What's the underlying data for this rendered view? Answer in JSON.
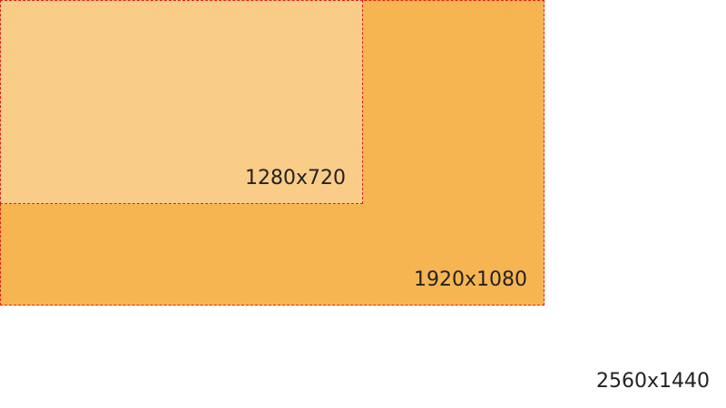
{
  "resolutions": {
    "outer": {
      "label": "2560x1440"
    },
    "middle": {
      "label": "1920x1080",
      "fill_color": "#f7b552"
    },
    "inner": {
      "label": "1280x720",
      "fill_color": "#f9cc88"
    }
  },
  "colors": {
    "border": "#e0201a",
    "background": "#ffffff",
    "text": "#222222"
  }
}
